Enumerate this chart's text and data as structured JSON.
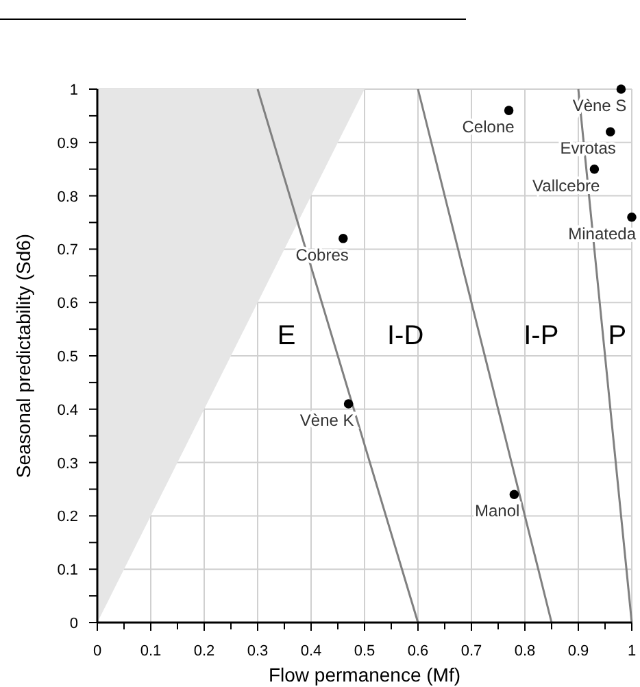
{
  "chart_data": {
    "type": "scatter",
    "xlabel": "Flow permanence (Mf)",
    "ylabel": "Seasonal predictability (Sd6)",
    "xlim": [
      0,
      1
    ],
    "ylim": [
      0,
      1
    ],
    "xticks": [
      0,
      {
        "value": 0.05,
        "label": null
      },
      0.1,
      {
        "value": 0.15,
        "label": null
      },
      0.2,
      {
        "value": 0.25,
        "label": null
      },
      0.3,
      {
        "value": 0.35,
        "label": null
      },
      0.4,
      {
        "value": 0.45,
        "label": null
      },
      0.5,
      {
        "value": 0.55,
        "label": null
      },
      0.6,
      {
        "value": 0.65,
        "label": null
      },
      0.7,
      {
        "value": 0.75,
        "label": null
      },
      0.8,
      {
        "value": 0.85,
        "label": null
      },
      0.9,
      {
        "value": 0.95,
        "label": null
      },
      1
    ],
    "yticks": [
      0,
      {
        "value": 0.05,
        "label": null
      },
      0.1,
      {
        "value": 0.15,
        "label": null
      },
      0.2,
      {
        "value": 0.25,
        "label": null
      },
      0.3,
      {
        "value": 0.35,
        "label": null
      },
      0.4,
      {
        "value": 0.45,
        "label": null
      },
      0.5,
      {
        "value": 0.55,
        "label": null
      },
      0.6,
      {
        "value": 0.65,
        "label": null
      },
      0.7,
      {
        "value": 0.75,
        "label": null
      },
      0.8,
      {
        "value": 0.85,
        "label": null
      },
      0.9,
      {
        "value": 0.95,
        "label": null
      },
      1
    ],
    "grid": true,
    "marker": "circle",
    "series": [
      {
        "type": "area",
        "marker": "none",
        "color": "#e6e6e6",
        "x": [
          0,
          0.5
        ],
        "values": [
          0,
          1
        ]
      },
      {
        "type": "line",
        "marker": "none",
        "color": "#808080",
        "x": [
          0.3,
          0.6
        ],
        "values": [
          1,
          0
        ]
      },
      {
        "type": "line",
        "marker": "none",
        "color": "#808080",
        "x": [
          0.6,
          0.85
        ],
        "values": [
          1,
          0
        ]
      },
      {
        "type": "line",
        "marker": "none",
        "color": "#808080",
        "x": [
          0.9,
          1
        ],
        "values": [
          1,
          0
        ]
      },
      {
        "name": "Vène S",
        "color": "#000000",
        "x": [
          0.98
        ],
        "values": [
          1.0
        ]
      },
      {
        "name": "Celone",
        "color": "#000000",
        "x": [
          0.77
        ],
        "values": [
          0.96
        ]
      },
      {
        "name": "Evrotas",
        "color": "#000000",
        "x": [
          0.96
        ],
        "values": [
          0.92
        ]
      },
      {
        "name": "Vallcebre",
        "color": "#000000",
        "x": [
          0.93
        ],
        "values": [
          0.85
        ]
      },
      {
        "name": "Minateda",
        "color": "#000000",
        "x": [
          1.0
        ],
        "values": [
          0.76
        ]
      },
      {
        "name": "Cobres",
        "color": "#000000",
        "x": [
          0.46
        ],
        "values": [
          0.72
        ]
      },
      {
        "name": "Vène K",
        "color": "#000000",
        "x": [
          0.47
        ],
        "values": [
          0.41
        ]
      },
      {
        "name": "Manol",
        "color": "#000000",
        "x": [
          0.78
        ],
        "values": [
          0.24
        ]
      }
    ],
    "annotations": [
      "E",
      "I-D",
      "I-P",
      "P"
    ]
  }
}
